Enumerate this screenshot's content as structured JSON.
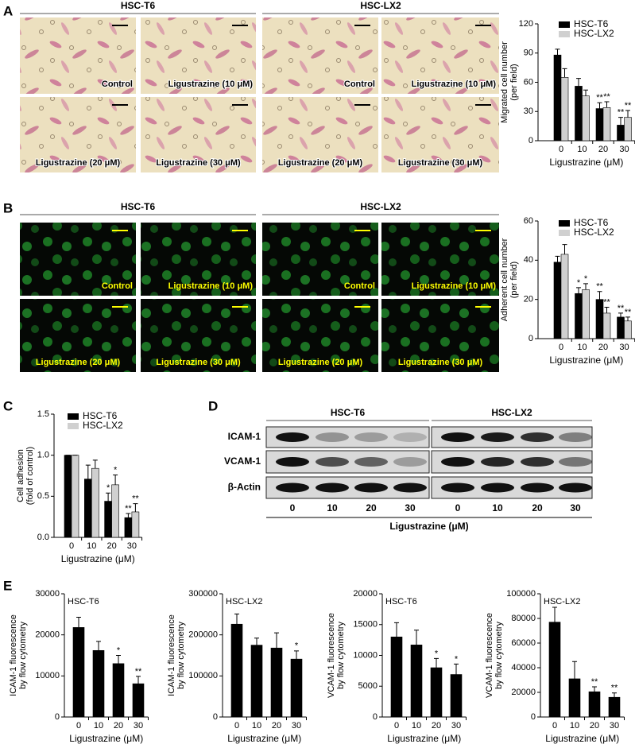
{
  "panel_labels": [
    "A",
    "B",
    "C",
    "D",
    "E"
  ],
  "panel_a": {
    "groups": [
      "HSC-T6",
      "HSC-LX2"
    ],
    "images": [
      "Control",
      "Ligustrazine (10 μM)",
      "Control",
      "Ligustrazine (10 μM)",
      "Ligustrazine (20 μM)",
      "Ligustrazine (30 μM)",
      "Ligustrazine (20 μM)",
      "Ligustrazine (30 μM)"
    ]
  },
  "panel_b": {
    "groups": [
      "HSC-T6",
      "HSC-LX2"
    ],
    "images": [
      "Control",
      "Ligustrazine (10 μM)",
      "Control",
      "Ligustrazine (10 μM)",
      "Ligustrazine (20 μM)",
      "Ligustrazine (30 μM)",
      "Ligustrazine (20 μM)",
      "Ligustrazine (30 μM)"
    ]
  },
  "panel_d": {
    "groups": [
      "HSC-T6",
      "HSC-LX2"
    ],
    "rows": [
      "ICAM-1",
      "VCAM-1",
      "β-Actin"
    ],
    "lanes": [
      "0",
      "10",
      "20",
      "30",
      "0",
      "10",
      "20",
      "30"
    ],
    "x_label": "Ligustrazine (μM)"
  },
  "chart_data": [
    {
      "type": "bar",
      "categories": [
        "0",
        "10",
        "20",
        "30"
      ],
      "x_label": "Ligustrazine (μM)",
      "y_label": [
        "Migrated cell number",
        "(per field)"
      ],
      "ylim": [
        0,
        120
      ],
      "yticks": [
        0,
        30,
        60,
        90,
        120
      ],
      "series": [
        {
          "name": "HSC-T6",
          "color": "#000000",
          "values": [
            88,
            56,
            33,
            16
          ],
          "errors": [
            6,
            8,
            6,
            8
          ],
          "significance": [
            null,
            null,
            "**",
            "**"
          ]
        },
        {
          "name": "HSC-LX2",
          "color": "#d0d0d0",
          "values": [
            65,
            46,
            34,
            24
          ],
          "errors": [
            9,
            6,
            6,
            7
          ],
          "significance": [
            null,
            null,
            "**",
            "**"
          ]
        }
      ]
    },
    {
      "type": "bar",
      "categories": [
        "0",
        "10",
        "20",
        "30"
      ],
      "x_label": "Ligustrazine (μM)",
      "y_label": [
        "Adherent cell number",
        "(per field)"
      ],
      "ylim": [
        0,
        60
      ],
      "yticks": [
        0,
        20,
        40,
        60
      ],
      "series": [
        {
          "name": "HSC-T6",
          "color": "#000000",
          "values": [
            39,
            23,
            20,
            11
          ],
          "errors": [
            3,
            3,
            4,
            2
          ],
          "significance": [
            null,
            "*",
            "**",
            "**"
          ]
        },
        {
          "name": "HSC-LX2",
          "color": "#d0d0d0",
          "values": [
            43,
            25,
            13,
            9
          ],
          "errors": [
            5,
            3,
            3,
            2
          ],
          "significance": [
            null,
            "*",
            "**",
            "**"
          ]
        }
      ]
    },
    {
      "type": "bar",
      "categories": [
        "0",
        "10",
        "20",
        "30"
      ],
      "x_label": "Ligustrazine (μM)",
      "y_label": [
        "Cell adhesion",
        "(fold of control)"
      ],
      "ylim": [
        0,
        1.5
      ],
      "yticks": [
        {
          "value": 0,
          "label": "0.0"
        },
        0.5,
        {
          "value": 1,
          "label": "1.0"
        },
        1.5
      ],
      "series": [
        {
          "name": "HSC-T6",
          "color": "#000000",
          "values": [
            1.0,
            0.71,
            0.44,
            0.24
          ],
          "errors": [
            0,
            0.17,
            0.1,
            0.05
          ],
          "significance": [
            null,
            null,
            "*",
            "**"
          ]
        },
        {
          "name": "HSC-LX2",
          "color": "#d0d0d0",
          "values": [
            1.0,
            0.84,
            0.64,
            0.31
          ],
          "errors": [
            0,
            0.1,
            0.12,
            0.1
          ],
          "significance": [
            null,
            null,
            "*",
            "**"
          ]
        }
      ]
    },
    {
      "type": "bar",
      "subtitle": "HSC-T6",
      "categories": [
        "0",
        "10",
        "20",
        "30"
      ],
      "x_label": "Ligustrazine (μM)",
      "y_label": [
        "ICAM-1 fluorescence",
        "by flow cytometry"
      ],
      "ylim": [
        0,
        30000
      ],
      "yticks": [
        0,
        10000,
        20000,
        30000
      ],
      "series": [
        {
          "color": "#000000",
          "values": [
            21800,
            16200,
            13000,
            8100
          ],
          "errors": [
            2500,
            2200,
            2000,
            1800
          ],
          "significance": [
            null,
            null,
            "*",
            "**"
          ]
        }
      ]
    },
    {
      "type": "bar",
      "subtitle": "HSC-LX2",
      "categories": [
        "0",
        "10",
        "20",
        "30"
      ],
      "x_label": "Ligustrazine (μM)",
      "y_label": [
        "ICAM-1 fluorescence",
        "by flow cytometry"
      ],
      "ylim": [
        0,
        300000
      ],
      "yticks": [
        0,
        100000,
        200000,
        300000
      ],
      "series": [
        {
          "color": "#000000",
          "values": [
            226000,
            175000,
            168000,
            141000
          ],
          "errors": [
            25000,
            17000,
            37000,
            20000
          ],
          "significance": [
            null,
            null,
            null,
            "*"
          ]
        }
      ]
    },
    {
      "type": "bar",
      "subtitle": "HSC-T6",
      "categories": [
        "0",
        "10",
        "20",
        "30"
      ],
      "x_label": "Ligustrazine (μM)",
      "y_label": [
        "VCAM-1 fluorescence",
        "by flow cytometry"
      ],
      "ylim": [
        0,
        20000
      ],
      "yticks": [
        0,
        5000,
        10000,
        15000,
        20000
      ],
      "series": [
        {
          "color": "#000000",
          "values": [
            13000,
            11700,
            8000,
            6900
          ],
          "errors": [
            2300,
            2400,
            1500,
            1700
          ],
          "significance": [
            null,
            null,
            "*",
            "*"
          ]
        }
      ]
    },
    {
      "type": "bar",
      "subtitle": "HSC-LX2",
      "categories": [
        "0",
        "10",
        "20",
        "30"
      ],
      "x_label": "Ligustrazine (μM)",
      "y_label": [
        "VCAM-1 fluorescence",
        "by flow cytometry"
      ],
      "ylim": [
        0,
        100000
      ],
      "yticks": [
        0,
        20000,
        40000,
        60000,
        80000,
        100000
      ],
      "series": [
        {
          "color": "#000000",
          "values": [
            77000,
            31000,
            20500,
            16000
          ],
          "errors": [
            12000,
            14000,
            4000,
            3500
          ],
          "significance": [
            null,
            null,
            "**",
            "**"
          ]
        }
      ]
    }
  ]
}
